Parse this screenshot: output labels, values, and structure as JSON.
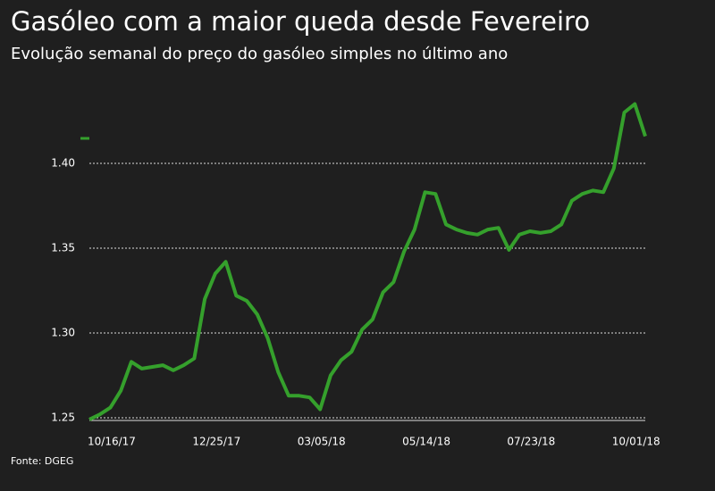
{
  "chart_data": {
    "type": "line",
    "title": "Gasóleo com a maior queda desde Fevereiro",
    "subtitle": "Evolução semanal do preço do gasóleo simples no último ano",
    "source": "Fonte: DGEG",
    "categories": [
      "10/16/17",
      null,
      null,
      null,
      null,
      null,
      null,
      null,
      null,
      null,
      "12/25/17",
      null,
      null,
      null,
      null,
      null,
      null,
      null,
      null,
      null,
      "03/05/18",
      null,
      null,
      null,
      null,
      null,
      null,
      null,
      null,
      null,
      "05/14/18",
      null,
      null,
      null,
      null,
      null,
      null,
      null,
      null,
      null,
      "07/23/18",
      null,
      null,
      null,
      null,
      null,
      null,
      null,
      null,
      null,
      "10/01/18",
      null,
      null,
      null
    ],
    "series": [
      {
        "color": "#35a02c",
        "values": [
          1.249,
          1.252,
          1.256,
          1.266,
          1.283,
          1.279,
          1.28,
          1.281,
          1.278,
          1.281,
          1.285,
          1.32,
          1.335,
          1.342,
          1.322,
          1.319,
          1.311,
          1.297,
          1.277,
          1.263,
          1.263,
          1.262,
          1.255,
          1.275,
          1.284,
          1.289,
          1.302,
          1.308,
          1.324,
          1.33,
          1.348,
          1.361,
          1.383,
          1.382,
          1.364,
          1.361,
          1.359,
          1.358,
          1.361,
          1.362,
          1.349,
          1.358,
          1.36,
          1.359,
          1.36,
          1.364,
          1.378,
          1.382,
          1.384,
          1.383,
          1.397,
          1.43,
          1.435,
          1.416
        ]
      }
    ],
    "ylim": [
      1.248,
      1.44
    ],
    "yticks": [
      {
        "value": 1.25,
        "label": "1.25"
      },
      {
        "value": 1.3,
        "label": "1.30"
      },
      {
        "value": 1.35,
        "label": "1.35"
      },
      {
        "value": 1.4,
        "label": "1.40"
      }
    ],
    "grid": true
  }
}
